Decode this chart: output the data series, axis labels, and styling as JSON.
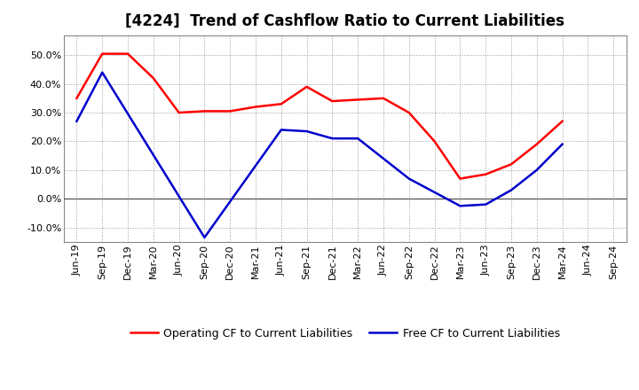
{
  "title": "[4224]  Trend of Cashflow Ratio to Current Liabilities",
  "x_labels": [
    "Jun-19",
    "Sep-19",
    "Dec-19",
    "Mar-20",
    "Jun-20",
    "Sep-20",
    "Dec-20",
    "Mar-21",
    "Jun-21",
    "Sep-21",
    "Dec-21",
    "Mar-22",
    "Jun-22",
    "Sep-22",
    "Dec-22",
    "Mar-23",
    "Jun-23",
    "Sep-23",
    "Dec-23",
    "Mar-24",
    "Jun-24",
    "Sep-24"
  ],
  "operating_cf_x": [
    0,
    1,
    2,
    3,
    4,
    5,
    6,
    7,
    8,
    9,
    10,
    11,
    12,
    13,
    14,
    15,
    16,
    17,
    18,
    19
  ],
  "operating_cf_y": [
    35.0,
    50.5,
    50.5,
    42.0,
    30.0,
    30.5,
    30.5,
    32.0,
    33.0,
    39.0,
    34.0,
    34.5,
    35.0,
    30.0,
    20.0,
    7.0,
    8.5,
    12.0,
    19.0,
    27.0
  ],
  "free_cf_x": [
    0,
    1,
    5,
    8,
    9,
    10,
    11,
    13,
    15,
    16,
    17,
    18,
    19
  ],
  "free_cf_y": [
    27.0,
    44.0,
    -13.5,
    24.0,
    23.5,
    21.0,
    21.0,
    7.0,
    -2.5,
    -2.0,
    3.0,
    10.0,
    19.0
  ],
  "operating_cf_color": "#ff0000",
  "free_cf_color": "#0000cc",
  "ylim": [
    -15.0,
    57.0
  ],
  "yticks": [
    -10.0,
    0.0,
    10.0,
    20.0,
    30.0,
    40.0,
    50.0
  ],
  "background_color": "#ffffff",
  "grid_color": "#999999",
  "legend_labels": [
    "Operating CF to Current Liabilities",
    "Free CF to Current Liabilities"
  ],
  "title_fontsize": 12,
  "tick_fontsize": 8,
  "legend_fontsize": 9,
  "linewidth": 1.8
}
